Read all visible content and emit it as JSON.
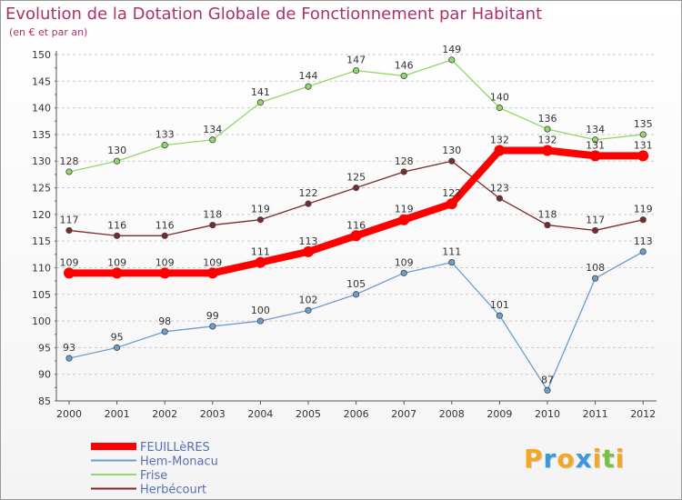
{
  "chart_data": {
    "type": "line",
    "title": "Evolution de la Dotation Globale de Fonctionnement par Habitant",
    "subtitle": "(en € et par an)",
    "x": [
      "2000",
      "2001",
      "2002",
      "2003",
      "2004",
      "2005",
      "2006",
      "2007",
      "2008",
      "2009",
      "2010",
      "2011",
      "2012"
    ],
    "ylim": [
      85,
      150
    ],
    "yticks": [
      85,
      90,
      95,
      100,
      105,
      110,
      115,
      120,
      125,
      130,
      135,
      140,
      145,
      150
    ],
    "grid": "horizontal-dashed",
    "legend_position": "bottom-left",
    "series": [
      {
        "name": "FEUILLèRES",
        "color": "#ff0000",
        "emphasis": true,
        "values": [
          109,
          109,
          109,
          109,
          111,
          113,
          116,
          119,
          122,
          132,
          132,
          131,
          131
        ]
      },
      {
        "name": "Hem-Monacu",
        "color": "#6a9fcf",
        "values": [
          93,
          95,
          98,
          99,
          100,
          102,
          105,
          109,
          111,
          101,
          87,
          108,
          113
        ]
      },
      {
        "name": "Frise",
        "color": "#90d868",
        "values": [
          128,
          130,
          133,
          134,
          141,
          144,
          147,
          146,
          149,
          140,
          136,
          134,
          135
        ]
      },
      {
        "name": "Herbécourt",
        "color": "#7a2a2a",
        "values": [
          117,
          116,
          116,
          118,
          119,
          122,
          125,
          128,
          130,
          123,
          118,
          117,
          119
        ]
      }
    ]
  },
  "logo": {
    "letters": [
      "P",
      "r",
      "o",
      "x",
      "i",
      "t",
      "i"
    ],
    "colors": [
      "#f5a623",
      "#3a9ad9",
      "#f5a623",
      "#3a9ad9",
      "#f5a623",
      "#7ac142",
      "#f5a623"
    ]
  }
}
